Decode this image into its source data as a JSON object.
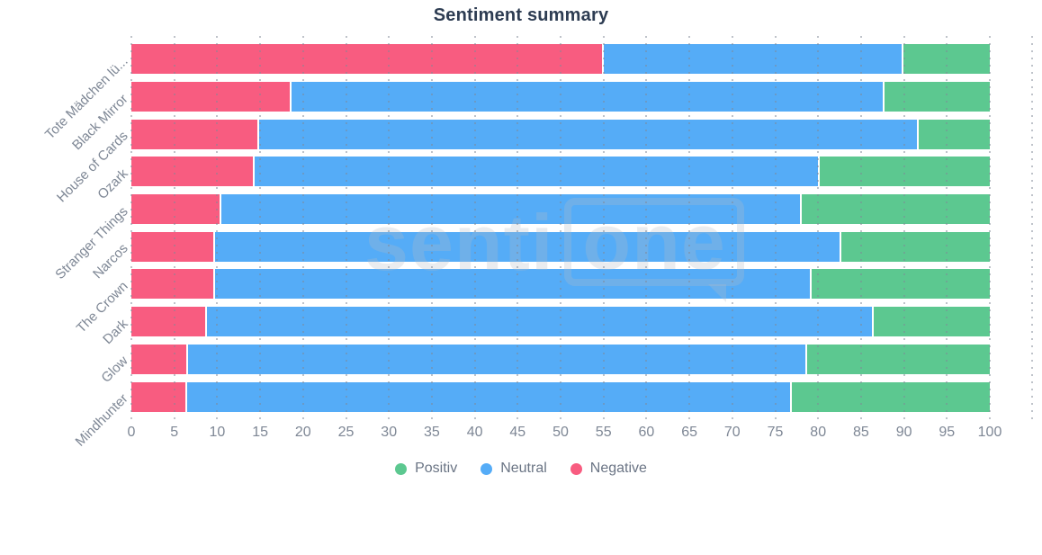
{
  "title": "Sentiment summary",
  "watermark": {
    "text_left": "senti",
    "text_boxed": "one"
  },
  "colors": {
    "positive": "#5cc890",
    "neutral": "#55acf7",
    "negative": "#f85c80",
    "title_text": "#2d3c52",
    "axis_text": "#7e8795",
    "legend_text": "#6b7585",
    "grid_dots": "#808896"
  },
  "chart_data": {
    "type": "bar",
    "orientation": "horizontal",
    "stacked": true,
    "title": "Sentiment summary",
    "categories": [
      "Tote Mädchen lü...",
      "Black Mirror",
      "House of Cards",
      "Ozark",
      "Stranger Things",
      "Narcos",
      "The Crown",
      "Dark",
      "Glow",
      "Mindhunter"
    ],
    "segment_order": [
      "Negative",
      "Neutral",
      "Positiv"
    ],
    "series": [
      {
        "name": "Negative",
        "color": "#f85c80",
        "values": [
          54.8,
          18.4,
          14.7,
          14.1,
          10.3,
          9.5,
          9.5,
          8.6,
          6.4,
          6.3
        ]
      },
      {
        "name": "Neutral",
        "color": "#55acf7",
        "values": [
          34.9,
          69.1,
          76.8,
          65.9,
          67.6,
          73.0,
          69.5,
          77.7,
          72.1,
          70.4
        ]
      },
      {
        "name": "Positiv",
        "color": "#5cc890",
        "values": [
          10.3,
          12.5,
          8.5,
          20.0,
          22.1,
          17.5,
          21.0,
          13.7,
          21.5,
          23.3
        ]
      }
    ],
    "legend": [
      {
        "label": "Positiv",
        "color": "#5cc890"
      },
      {
        "label": "Neutral",
        "color": "#55acf7"
      },
      {
        "label": "Negative",
        "color": "#f85c80"
      }
    ],
    "xlim": [
      0,
      100
    ],
    "x_tick_step": 5,
    "x_ticks": [
      0,
      5,
      10,
      15,
      20,
      25,
      30,
      35,
      40,
      45,
      50,
      55,
      60,
      65,
      70,
      75,
      80,
      85,
      90,
      95,
      100
    ],
    "grid": "dotted-vertical",
    "legend_position": "bottom"
  }
}
